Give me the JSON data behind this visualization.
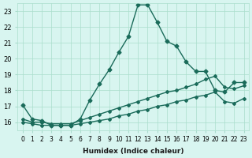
{
  "xlabel": "Humidex (Indice chaleur)",
  "bg_color": "#d8f5f0",
  "grid_color": "#aaddcc",
  "line_color": "#1a6b5a",
  "line_color2": "#1a6b5a",
  "ylim": [
    15.5,
    23.5
  ],
  "xlim": [
    -0.5,
    23.5
  ],
  "yticks": [
    16,
    17,
    18,
    19,
    20,
    21,
    22,
    23
  ],
  "xticks": [
    0,
    1,
    2,
    3,
    4,
    5,
    6,
    7,
    8,
    9,
    10,
    11,
    12,
    13,
    14,
    15,
    16,
    17,
    18,
    19,
    20,
    21,
    22,
    23
  ],
  "xtick_labels": [
    "0",
    "1",
    "2",
    "3",
    "4",
    "5",
    "6",
    "7",
    "8",
    "9",
    "10",
    "11",
    "12",
    "13",
    "14",
    "15",
    "16",
    "17",
    "18",
    "19",
    "20",
    "21",
    "22",
    "23"
  ],
  "series1_x": [
    0,
    1,
    2,
    3,
    4,
    5,
    6,
    7,
    8,
    9,
    10,
    11,
    12,
    13,
    14,
    15,
    16,
    17,
    18,
    19,
    20,
    21,
    22,
    23
  ],
  "series1_y": [
    17.1,
    16.2,
    16.1,
    15.8,
    15.8,
    15.8,
    16.2,
    17.4,
    18.4,
    19.3,
    20.4,
    21.4,
    23.4,
    23.4,
    22.3,
    21.1,
    20.8,
    19.8,
    19.2,
    19.2,
    18.0,
    17.9,
    18.5,
    18.5
  ],
  "series2_x": [
    0,
    1,
    2,
    3,
    4,
    5,
    6,
    7,
    8,
    9,
    10,
    11,
    12,
    13,
    14,
    15,
    16,
    17,
    18,
    19,
    20,
    21,
    22,
    23
  ],
  "series2_y": [
    16.2,
    16.0,
    16.0,
    15.9,
    15.9,
    15.9,
    16.1,
    16.3,
    16.5,
    16.7,
    16.9,
    17.1,
    17.3,
    17.5,
    17.7,
    17.9,
    18.0,
    18.2,
    18.4,
    18.7,
    18.9,
    18.2,
    18.1,
    18.3
  ],
  "series3_x": [
    0,
    1,
    2,
    3,
    4,
    5,
    6,
    7,
    8,
    9,
    10,
    11,
    12,
    13,
    14,
    15,
    16,
    17,
    18,
    19,
    20,
    21,
    22,
    23
  ],
  "series3_y": [
    16.0,
    15.9,
    15.8,
    15.8,
    15.8,
    15.8,
    15.9,
    16.0,
    16.1,
    16.2,
    16.4,
    16.5,
    16.7,
    16.8,
    17.0,
    17.1,
    17.3,
    17.4,
    17.6,
    17.7,
    17.9,
    17.3,
    17.2,
    17.5
  ]
}
